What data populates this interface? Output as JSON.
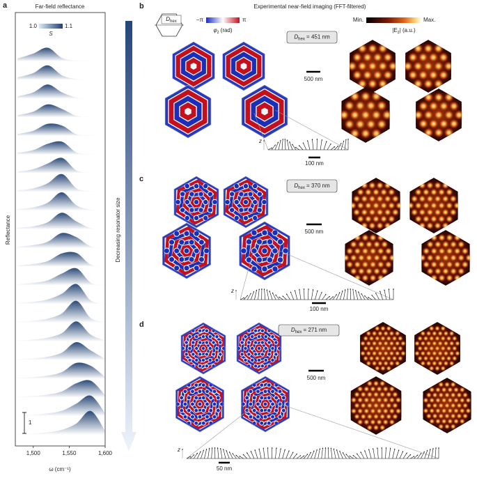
{
  "chart_data": {
    "type": "line",
    "panel_label": "a",
    "title": "Far-field reflectance",
    "x_label": "ω (cm⁻¹)",
    "y_label": "Reflectance",
    "arrow_label": "Decreasing resonator size",
    "x": [
      1478,
      1500,
      1520,
      1540,
      1560,
      1580,
      1600
    ],
    "xlim": [
      1475,
      1600
    ],
    "xticks": [
      {
        "value": 1500,
        "label": "1,500"
      },
      {
        "value": 1550,
        "label": "1,550"
      },
      {
        "value": 1600,
        "label": "1,600"
      }
    ],
    "color": "#2b4a78",
    "scale_bar": 1,
    "colorbar": {
      "label": "S",
      "lim": [
        1,
        1.1
      ],
      "ticks": [
        {
          "value": 1,
          "label": "1.0"
        },
        {
          "value": 1.1,
          "label": "1.1"
        }
      ],
      "colors": [
        "#dfe9f5",
        "#22406e"
      ]
    },
    "series": [
      {
        "values": [
          0.13,
          0.37,
          0.65,
          0.16,
          0.04,
          0.02,
          0.01
        ]
      },
      {
        "values": [
          0.12,
          0.33,
          0.7,
          0.22,
          0.05,
          0.02,
          0.01
        ]
      },
      {
        "values": [
          0.11,
          0.3,
          0.68,
          0.3,
          0.06,
          0.02,
          0.01
        ]
      },
      {
        "values": [
          0.1,
          0.27,
          0.62,
          0.4,
          0.07,
          0.02,
          0.01
        ]
      },
      {
        "values": [
          0.1,
          0.25,
          0.58,
          0.5,
          0.09,
          0.03,
          0.01
        ]
      },
      {
        "values": [
          0.09,
          0.22,
          0.52,
          0.62,
          0.11,
          0.03,
          0.01
        ]
      },
      {
        "values": [
          0.08,
          0.2,
          0.47,
          0.74,
          0.14,
          0.03,
          0.01
        ]
      },
      {
        "values": [
          0.08,
          0.18,
          0.42,
          0.86,
          0.18,
          0.04,
          0.01
        ]
      },
      {
        "values": [
          0.07,
          0.16,
          0.38,
          0.88,
          0.26,
          0.05,
          0.02
        ]
      },
      {
        "values": [
          0.07,
          0.15,
          0.34,
          0.8,
          0.38,
          0.06,
          0.02
        ]
      },
      {
        "values": [
          0.06,
          0.14,
          0.3,
          0.72,
          0.52,
          0.08,
          0.02
        ]
      },
      {
        "values": [
          0.06,
          0.13,
          0.27,
          0.64,
          0.66,
          0.1,
          0.02
        ]
      },
      {
        "values": [
          0.05,
          0.12,
          0.24,
          0.57,
          0.82,
          0.13,
          0.03
        ]
      },
      {
        "values": [
          0.05,
          0.11,
          0.22,
          0.5,
          0.96,
          0.17,
          0.03
        ]
      },
      {
        "values": [
          0.05,
          0.1,
          0.2,
          0.45,
          1.05,
          0.22,
          0.04
        ]
      },
      {
        "values": [
          0.04,
          0.09,
          0.18,
          0.4,
          0.96,
          0.32,
          0.05
        ]
      },
      {
        "values": [
          0.04,
          0.08,
          0.16,
          0.36,
          0.86,
          0.46,
          0.06
        ]
      },
      {
        "values": [
          0.04,
          0.08,
          0.15,
          0.32,
          0.76,
          0.62,
          0.08
        ]
      },
      {
        "values": [
          0.03,
          0.07,
          0.14,
          0.29,
          0.68,
          0.8,
          0.1
        ]
      },
      {
        "values": [
          0.03,
          0.07,
          0.13,
          0.26,
          0.6,
          0.98,
          0.13
        ]
      },
      {
        "values": [
          0.03,
          0.06,
          0.12,
          0.24,
          0.54,
          1.14,
          0.18
        ]
      }
    ]
  },
  "figure": {
    "title": "Experimental near-field imaging (FFT-filtered)",
    "dhex_icon": {
      "symbol": "D",
      "sub": "hex"
    },
    "phase_legend": {
      "min": "−π",
      "max": "π",
      "symbol": "φ",
      "sub": "z",
      "unit": "(rad)"
    },
    "field_legend": {
      "min": "Min.",
      "max": "Max.",
      "symbol": "|E",
      "sub": "z",
      "unit": "| (a.u.)"
    },
    "panels": [
      {
        "label": "b",
        "dhex_symbol": "D",
        "dhex_sub": "hex",
        "dhex_value": " = 451 nm",
        "scale_bar": "500 nm",
        "profile_axis": "z",
        "profile_scale": "100 nm"
      },
      {
        "label": "c",
        "dhex_symbol": "D",
        "dhex_sub": "hex",
        "dhex_value": " = 370 nm",
        "scale_bar": "500 nm",
        "profile_axis": "z",
        "profile_scale": "100 nm"
      },
      {
        "label": "d",
        "dhex_symbol": "D",
        "dhex_sub": "hex",
        "dhex_value": " = 271 nm",
        "scale_bar": "500 nm",
        "profile_axis": "z",
        "profile_scale": "50 nm"
      }
    ]
  }
}
